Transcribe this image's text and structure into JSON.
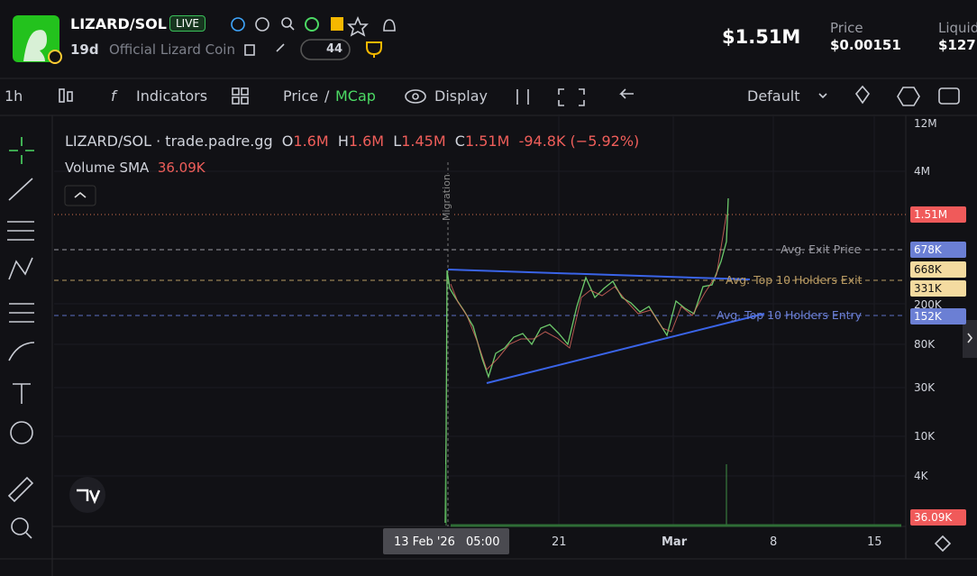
{
  "header": {
    "symbol": "LIZARD/SOL",
    "live": "LIVE",
    "age": "19d",
    "name": "Official Lizard Coin",
    "watchers": "44",
    "market_cap": "$1.51M",
    "price_label": "Price",
    "price": "$0.00151",
    "liquidity_label": "Liquidi",
    "liquidity": "$127"
  },
  "toolbar": {
    "interval": "1h",
    "indicators": "Indicators",
    "price": "Price",
    "separator": "/",
    "mcap": "MCap",
    "display": "Display",
    "layout": "Default"
  },
  "chart": {
    "legend": {
      "pair": "LIZARD/SOL · trade.padre.gg",
      "open_label": "O",
      "open": "1.6M",
      "high_label": "H",
      "high": "1.6M",
      "low_label": "L",
      "low": "1.45M",
      "close_label": "C",
      "close": "1.51M",
      "change": "-94.8K (−5.92%)",
      "volume_label": "Volume SMA",
      "volume": "36.09K"
    },
    "marker": "Migration",
    "price_axis": [
      "12M",
      "4M",
      "1.51M",
      "678K",
      "668K",
      "331K",
      "200K",
      "152K",
      "80K",
      "30K",
      "10K",
      "4K",
      "36.09K"
    ],
    "lines": [
      "Avg. Exit Price",
      "Avg. Top 10 Holders Exit",
      "Avg. Top 10 Holders Entry"
    ],
    "time_axis": [
      "13 Feb '26",
      "05:00",
      "21",
      "Mar",
      "8",
      "15"
    ]
  }
}
